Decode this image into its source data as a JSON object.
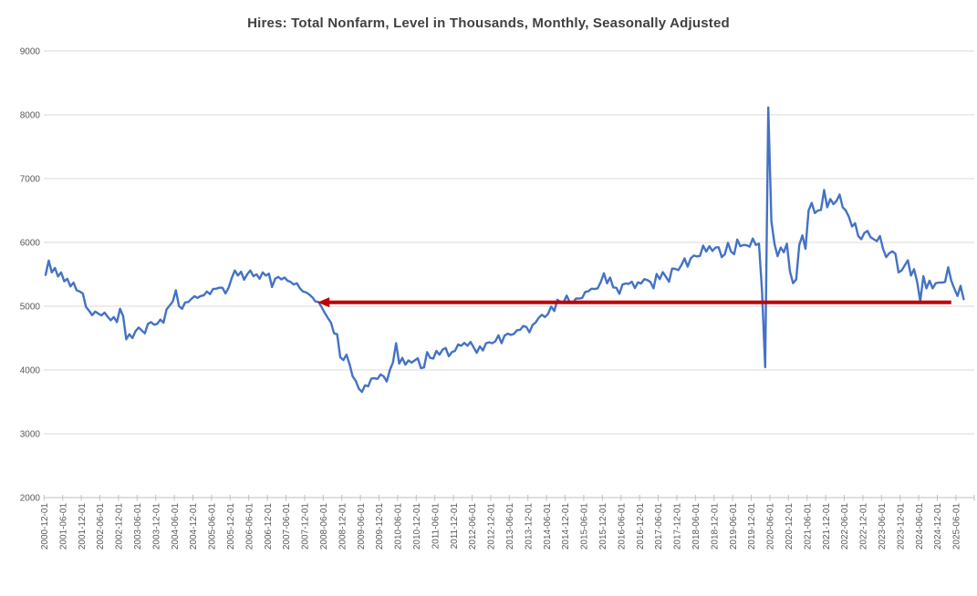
{
  "chart_data": {
    "type": "line",
    "title": "Hires: Total Nonfarm, Level in Thousands, Monthly, Seasonally Adjusted",
    "x_start": "2000-12",
    "x_end": "2025-08",
    "frequency": "monthly",
    "ylim": [
      2000,
      9000
    ],
    "y_ticks": [
      9000,
      8000,
      7000,
      6000,
      5000,
      4000,
      3000,
      2000
    ],
    "grid": "horizontal",
    "legend": "none",
    "x_tick_labels": [
      "2000-12-01",
      "2001-06-01",
      "2001-12-01",
      "2002-06-01",
      "2002-12-01",
      "2003-06-01",
      "2003-12-01",
      "2004-06-01",
      "2004-12-01",
      "2005-06-01",
      "2005-12-01",
      "2006-06-01",
      "2006-12-01",
      "2007-06-01",
      "2007-12-01",
      "2008-06-01",
      "2008-12-01",
      "2009-06-01",
      "2009-12-01",
      "2010-06-01",
      "2010-12-01",
      "2011-06-01",
      "2011-12-01",
      "2012-06-01",
      "2012-12-01",
      "2013-06-01",
      "2013-12-01",
      "2014-06-01",
      "2014-12-01",
      "2015-06-01",
      "2015-12-01",
      "2016-06-01",
      "2016-12-01",
      "2017-06-01",
      "2017-12-01",
      "2018-06-01",
      "2018-12-01",
      "2019-06-01",
      "2019-12-01",
      "2020-06-01",
      "2020-12-01",
      "2021-06-01",
      "2021-12-01",
      "2022-06-01",
      "2022-12-01",
      "2023-06-01",
      "2023-12-01",
      "2024-06-01",
      "2024-12-01",
      "2025-06-01"
    ],
    "series": [
      {
        "color": "#4472C4",
        "values": [
          5490,
          5715,
          5530,
          5600,
          5465,
          5530,
          5390,
          5430,
          5310,
          5370,
          5250,
          5230,
          5200,
          4990,
          4930,
          4860,
          4915,
          4885,
          4855,
          4900,
          4835,
          4780,
          4830,
          4750,
          4960,
          4845,
          4480,
          4560,
          4500,
          4610,
          4665,
          4620,
          4575,
          4725,
          4750,
          4710,
          4725,
          4790,
          4740,
          4950,
          5010,
          5075,
          5250,
          5000,
          4960,
          5060,
          5065,
          5115,
          5155,
          5130,
          5160,
          5170,
          5230,
          5190,
          5270,
          5275,
          5290,
          5290,
          5200,
          5290,
          5440,
          5560,
          5480,
          5540,
          5415,
          5500,
          5560,
          5470,
          5500,
          5430,
          5530,
          5480,
          5510,
          5300,
          5430,
          5460,
          5420,
          5450,
          5400,
          5380,
          5340,
          5360,
          5280,
          5230,
          5215,
          5185,
          5140,
          5075,
          5065,
          4985,
          4895,
          4815,
          4745,
          4575,
          4560,
          4200,
          4155,
          4240,
          4090,
          3900,
          3830,
          3705,
          3655,
          3760,
          3745,
          3865,
          3870,
          3860,
          3930,
          3900,
          3820,
          4000,
          4120,
          4420,
          4100,
          4190,
          4085,
          4150,
          4115,
          4150,
          4185,
          4030,
          4040,
          4280,
          4190,
          4180,
          4300,
          4240,
          4320,
          4345,
          4215,
          4280,
          4300,
          4400,
          4380,
          4425,
          4380,
          4440,
          4355,
          4270,
          4370,
          4305,
          4420,
          4435,
          4420,
          4450,
          4545,
          4420,
          4540,
          4570,
          4550,
          4565,
          4625,
          4630,
          4690,
          4675,
          4590,
          4705,
          4745,
          4820,
          4865,
          4830,
          4880,
          4995,
          4925,
          5100,
          5070,
          5060,
          5165,
          5060,
          5055,
          5120,
          5120,
          5130,
          5225,
          5235,
          5275,
          5270,
          5280,
          5380,
          5515,
          5360,
          5450,
          5295,
          5290,
          5195,
          5340,
          5355,
          5350,
          5385,
          5285,
          5375,
          5355,
          5425,
          5410,
          5380,
          5280,
          5505,
          5425,
          5535,
          5460,
          5385,
          5590,
          5585,
          5565,
          5645,
          5750,
          5620,
          5750,
          5795,
          5780,
          5790,
          5950,
          5855,
          5940,
          5865,
          5920,
          5925,
          5770,
          5815,
          5995,
          5855,
          5815,
          6045,
          5940,
          5960,
          5955,
          5935,
          6060,
          5960,
          5980,
          5220,
          4045,
          8115,
          6330,
          5980,
          5785,
          5920,
          5845,
          5980,
          5540,
          5360,
          5420,
          5960,
          6110,
          5900,
          6500,
          6620,
          6460,
          6500,
          6510,
          6820,
          6550,
          6680,
          6600,
          6650,
          6750,
          6550,
          6500,
          6400,
          6250,
          6300,
          6100,
          6050,
          6150,
          6180,
          6080,
          6050,
          6020,
          6100,
          5900,
          5770,
          5830,
          5860,
          5820,
          5530,
          5560,
          5640,
          5720,
          5480,
          5580,
          5380,
          5080,
          5470,
          5280,
          5400,
          5280,
          5360,
          5370,
          5370,
          5380,
          5610,
          5400,
          5275,
          5160,
          5320,
          5110
        ]
      }
    ],
    "annotation": {
      "type": "horizontal-line-with-left-arrow",
      "value": 5060,
      "x_start": "2008-04",
      "x_end": "2025-04",
      "color": "#C00000"
    }
  },
  "colors": {
    "line": "#4472C4",
    "annotation": "#C00000",
    "gridline": "#D9D9D9",
    "axis_line": "#BFBFBF",
    "axis_text": "#595959",
    "title_text": "#404040",
    "background": "#FFFFFF"
  }
}
